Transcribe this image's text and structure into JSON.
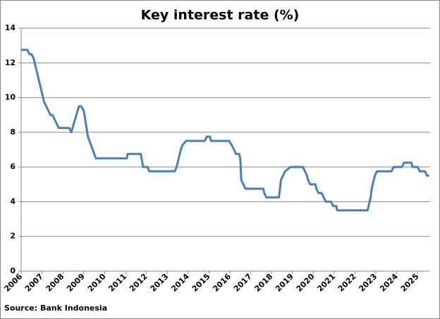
{
  "chart_data": {
    "type": "line",
    "title": "Key interest rate (%)",
    "source": "Source: Bank Indonesia",
    "xlim": [
      2006,
      2025.6
    ],
    "xticks": [
      2006,
      2007,
      2008,
      2009,
      2010,
      2011,
      2012,
      2013,
      2014,
      2015,
      2016,
      2017,
      2018,
      2019,
      2020,
      2021,
      2022,
      2023,
      2024,
      2025
    ],
    "ylim": [
      0,
      14
    ],
    "yticks": [
      0,
      2,
      4,
      6,
      8,
      10,
      12,
      14
    ],
    "grid": true,
    "x": [
      2006.0,
      2006.3,
      2006.4,
      2006.5,
      2006.6,
      2006.7,
      2006.8,
      2006.9,
      2007.0,
      2007.1,
      2007.2,
      2007.4,
      2007.5,
      2007.6,
      2007.7,
      2007.8,
      2007.9,
      2008.3,
      2008.4,
      2008.77,
      2008.87,
      2009.0,
      2009.2,
      2009.58,
      2011.07,
      2011.1,
      2011.74,
      2011.84,
      2012.05,
      2012.15,
      2013.36,
      2013.45,
      2013.55,
      2013.65,
      2013.73,
      2013.9,
      2014.8,
      2014.9,
      2015.05,
      2015.1,
      2015.97,
      2016.1,
      2016.2,
      2016.3,
      2016.45,
      2016.5,
      2016.55,
      2016.65,
      2016.75,
      2017.6,
      2017.65,
      2017.75,
      2018.35,
      2018.38,
      2018.45,
      2018.55,
      2018.65,
      2018.9,
      2019.5,
      2019.6,
      2019.7,
      2019.75,
      2019.85,
      2020.1,
      2020.15,
      2020.25,
      2020.4,
      2020.5,
      2020.6,
      2020.85,
      2020.95,
      2021.1,
      2021.15,
      2022.6,
      2022.65,
      2022.75,
      2022.8,
      2022.9,
      2022.95,
      2023.05,
      2023.75,
      2023.85,
      2024.25,
      2024.35,
      2024.7,
      2024.75,
      2025.0,
      2025.1,
      2025.35,
      2025.45,
      2025.55
    ],
    "series": [
      {
        "name": "Key interest rate",
        "color": "#4a7ebb",
        "values": [
          12.75,
          12.75,
          12.5,
          12.5,
          12.25,
          11.75,
          11.25,
          10.75,
          10.25,
          9.75,
          9.5,
          9.0,
          9.0,
          8.75,
          8.5,
          8.25,
          8.25,
          8.25,
          8.0,
          9.5,
          9.5,
          9.25,
          7.75,
          6.5,
          6.5,
          6.75,
          6.75,
          6.0,
          6.0,
          5.75,
          5.75,
          6.0,
          6.5,
          7.0,
          7.25,
          7.5,
          7.5,
          7.75,
          7.75,
          7.5,
          7.5,
          7.25,
          7.0,
          6.75,
          6.75,
          6.5,
          5.25,
          5.0,
          4.75,
          4.75,
          4.5,
          4.25,
          4.25,
          4.5,
          5.25,
          5.5,
          5.75,
          6.0,
          6.0,
          5.75,
          5.5,
          5.25,
          5.0,
          5.0,
          4.75,
          4.5,
          4.5,
          4.25,
          4.0,
          4.0,
          3.75,
          3.75,
          3.5,
          3.5,
          3.75,
          4.25,
          4.75,
          5.25,
          5.5,
          5.75,
          5.75,
          6.0,
          6.0,
          6.25,
          6.25,
          6.0,
          6.0,
          5.75,
          5.75,
          5.5,
          5.5
        ]
      }
    ]
  }
}
